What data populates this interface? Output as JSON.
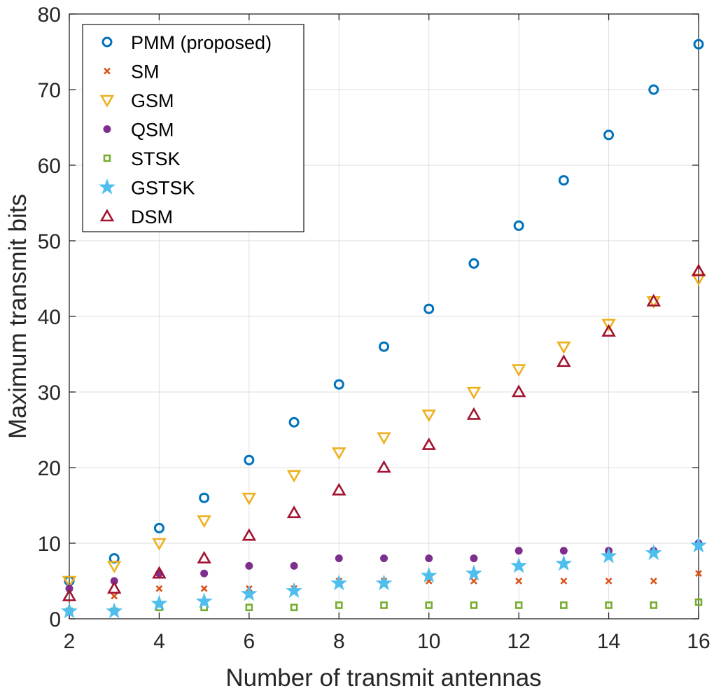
{
  "chart_data": {
    "type": "scatter",
    "title": "",
    "xlabel": "Number of transmit antennas",
    "ylabel": "Maximum transmit bits",
    "xlim": [
      2,
      16
    ],
    "ylim": [
      0,
      80
    ],
    "xticks": [
      2,
      4,
      6,
      8,
      10,
      12,
      14,
      16
    ],
    "yticks": [
      0,
      10,
      20,
      30,
      40,
      50,
      60,
      70,
      80
    ],
    "grid": true,
    "legend_position": "top-left",
    "x": [
      2,
      3,
      4,
      5,
      6,
      7,
      8,
      9,
      10,
      11,
      12,
      13,
      14,
      15,
      16
    ],
    "series": [
      {
        "name": "PMM (proposed)",
        "marker": "circle",
        "color": "#0072BD",
        "values": [
          5,
          8,
          12,
          16,
          21,
          26,
          31,
          36,
          41,
          47,
          52,
          58,
          64,
          70,
          76
        ]
      },
      {
        "name": "SM",
        "marker": "x",
        "color": "#D95319",
        "values": [
          1,
          3,
          4,
          4,
          4,
          4,
          5,
          5,
          5,
          5,
          5,
          5,
          5,
          5,
          6
        ]
      },
      {
        "name": "GSM",
        "marker": "triangle-down",
        "color": "#EDB120",
        "values": [
          5,
          7,
          10,
          13,
          16,
          19,
          22,
          24,
          27,
          30,
          33,
          36,
          39,
          42,
          45
        ]
      },
      {
        "name": "QSM",
        "marker": "dot",
        "color": "#7E2F8E",
        "values": [
          4,
          5,
          6,
          6,
          7,
          7,
          8,
          8,
          8,
          8,
          9,
          9,
          9,
          9,
          10
        ]
      },
      {
        "name": "STSK",
        "marker": "square",
        "color": "#77AC30",
        "values": [
          1,
          1,
          1.5,
          1.5,
          1.5,
          1.5,
          1.8,
          1.8,
          1.8,
          1.8,
          1.8,
          1.8,
          1.8,
          1.8,
          2.2
        ]
      },
      {
        "name": "GSTSK",
        "marker": "star",
        "color": "#4DBEEE",
        "values": [
          1,
          1,
          2,
          2.3,
          3.3,
          3.7,
          4.7,
          4.7,
          5.7,
          6,
          7,
          7.3,
          8.3,
          8.7,
          9.7
        ]
      },
      {
        "name": "DSM",
        "marker": "triangle-up",
        "color": "#A2142F",
        "values": [
          3,
          4,
          6,
          8,
          11,
          14,
          17,
          20,
          23,
          27,
          30,
          34,
          38,
          42,
          46
        ]
      }
    ]
  }
}
